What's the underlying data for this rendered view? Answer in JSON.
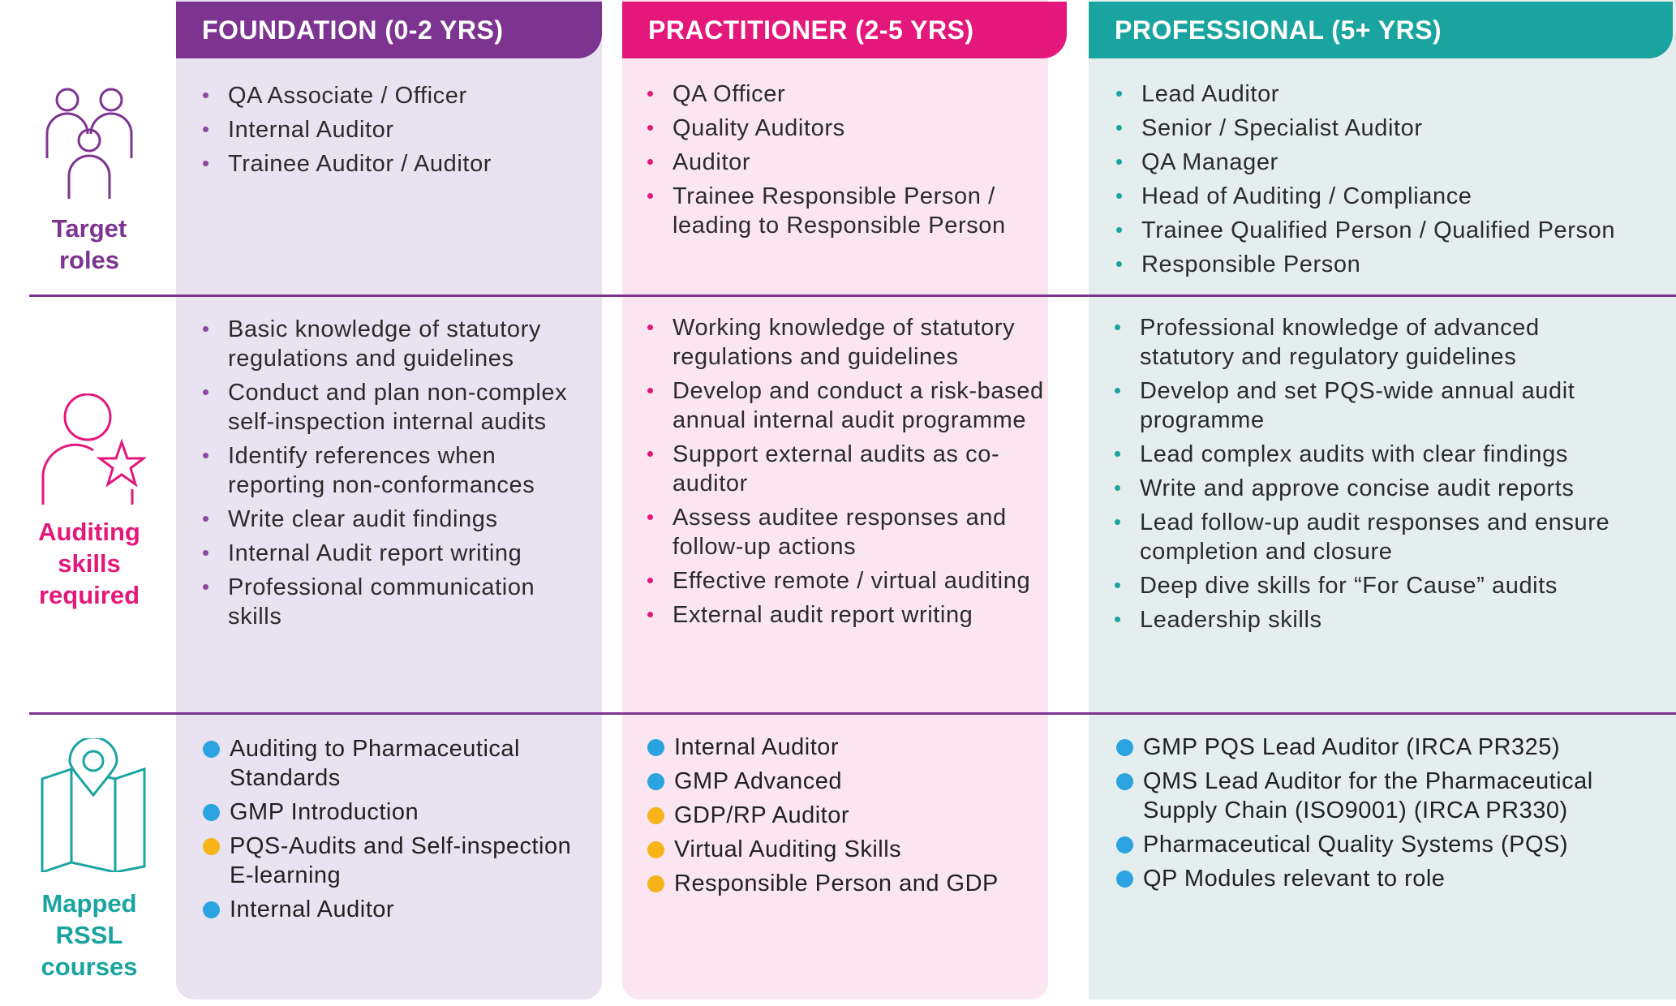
{
  "columns": [
    {
      "title": "FOUNDATION (0-2 YRS)"
    },
    {
      "title": "PRACTITIONER (2-5 YRS)"
    },
    {
      "title": "PROFESSIONAL (5+ YRS)"
    }
  ],
  "rows": {
    "target_roles": {
      "label_line1": "Target",
      "label_line2": "roles",
      "foundation": [
        "QA Associate / Officer",
        "Internal Auditor",
        "Trainee Auditor / Auditor"
      ],
      "practitioner": [
        "QA Officer",
        "Quality Auditors",
        "Auditor",
        "Trainee Responsible Person / leading to Responsible Person"
      ],
      "professional": [
        "Lead Auditor",
        "Senior / Specialist Auditor",
        "QA Manager",
        "Head of Auditing / Compliance",
        "Trainee Qualified Person / Qualified Person",
        "Responsible Person"
      ]
    },
    "skills": {
      "label_line1": "Auditing",
      "label_line2": "skills",
      "label_line3": "required",
      "foundation": [
        "Basic knowledge of statutory regulations and guidelines",
        "Conduct and plan non-complex self-inspection internal audits",
        "Identify references when reporting non-conformances",
        "Write clear audit findings",
        "Internal Audit report writing",
        "Professional communication skills"
      ],
      "practitioner": [
        "Working knowledge of statutory regulations and guidelines",
        "Develop and conduct a risk-based annual internal audit programme",
        "Support external audits as co-auditor",
        "Assess auditee responses and follow-up actions",
        "Effective remote / virtual auditing",
        "External audit report writing"
      ],
      "professional": [
        "Professional knowledge of advanced statutory and regulatory guidelines",
        "Develop and set PQS-wide annual audit programme",
        "Lead complex audits with clear findings",
        "Write and approve concise audit reports",
        "Lead follow-up audit responses and ensure completion and closure",
        "Deep dive skills for “For Cause” audits",
        "Leadership skills"
      ]
    },
    "courses": {
      "label_line1": "Mapped",
      "label_line2": "RSSL",
      "label_line3": "courses",
      "foundation": [
        "Auditing to Pharmaceutical Standards",
        "GMP Introduction",
        "PQS-Audits and Self-inspection E-learning",
        "Internal Auditor"
      ],
      "foundation_dot_colors": [
        "#2aa3e0",
        "#2aa3e0",
        "#f6b31a",
        "#2aa3e0"
      ],
      "practitioner": [
        "Internal Auditor",
        "GMP Advanced",
        "GDP/RP Auditor",
        "Virtual Auditing Skills",
        "Responsible Person and GDP"
      ],
      "practitioner_dot_colors": [
        "#2aa3e0",
        "#2aa3e0",
        "#f6b31a",
        "#f6b31a",
        "#f6b31a"
      ],
      "professional": [
        "GMP PQS Lead Auditor (IRCA PR325)",
        "QMS Lead Auditor for the Pharmaceutical Supply Chain (ISO9001) (IRCA PR330)",
        "Pharmaceutical Quality Systems (PQS)",
        "QP Modules relevant to role"
      ],
      "professional_dot_colors": [
        "#2aa3e0",
        "#2aa3e0",
        "#2aa3e0",
        "#2aa3e0"
      ]
    }
  },
  "colors": {
    "foundation": "#7d3490",
    "practitioner": "#e4177a",
    "professional": "#1aa4a0",
    "course_blue": "#2aa3e0",
    "course_yellow": "#f6b31a"
  },
  "icons": {
    "target_roles": "people-group-icon",
    "skills": "person-star-icon",
    "courses": "map-pin-icon"
  }
}
